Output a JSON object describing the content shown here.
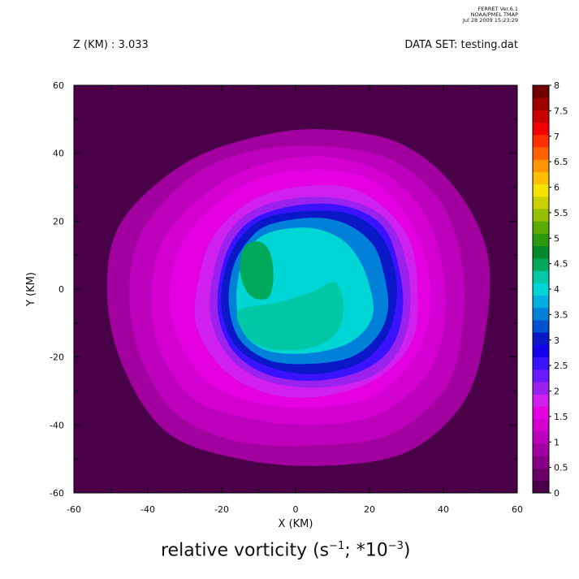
{
  "header": {
    "program": "FERRET  Ver.6.1",
    "org": "NOAA/PMEL TMAP",
    "timestamp": "Jul 28 2009 15:23:29",
    "z_level": "Z (KM) : 3.033",
    "dataset": "DATA SET: testing.dat"
  },
  "bottom_label": {
    "prefix": "relative vorticity (s",
    "exp1": "−1",
    "middle": "; *10",
    "exp2": "−3",
    "suffix": ")"
  },
  "chart_data": {
    "type": "heatmap",
    "title": "",
    "xlabel": "X (KM)",
    "ylabel": "Y (KM)",
    "xlim": [
      -60,
      60
    ],
    "ylim": [
      -60,
      60
    ],
    "x_ticks": [
      -60,
      -40,
      -20,
      0,
      20,
      40,
      60
    ],
    "y_ticks": [
      -60,
      -40,
      -20,
      0,
      20,
      40,
      60
    ],
    "colorbar": {
      "levels": [
        0,
        0.25,
        0.5,
        0.75,
        1,
        1.25,
        1.5,
        1.75,
        2,
        2.25,
        2.5,
        2.75,
        3,
        3.25,
        3.5,
        3.75,
        4,
        4.25,
        4.5,
        4.75,
        5,
        5.25,
        5.5,
        5.75,
        6,
        6.25,
        6.5,
        6.75,
        7,
        7.25,
        7.5,
        7.75,
        8
      ],
      "labels": [
        "0",
        "0.5",
        "1",
        "1.5",
        "2",
        "2.5",
        "3",
        "3.5",
        "4",
        "4.5",
        "5",
        "5.5",
        "6",
        "6.5",
        "7",
        "7.5",
        "8"
      ],
      "colors": [
        "#4a0048",
        "#6a0066",
        "#870084",
        "#a300a0",
        "#bd00bb",
        "#d400d2",
        "#e400e0",
        "#cf20f0",
        "#9a22ee",
        "#6a18ff",
        "#3a12ff",
        "#1400ee",
        "#0a18c8",
        "#0050d0",
        "#0080d8",
        "#00aee0",
        "#00d6d6",
        "#00c8a6",
        "#00a85a",
        "#008a2a",
        "#2c9a10",
        "#5aaa00",
        "#96be00",
        "#cad000",
        "#f4e400",
        "#ffbf00",
        "#ff9400",
        "#ff6000",
        "#ff3000",
        "#f20000",
        "#c80000",
        "#9e0000",
        "#700000"
      ]
    },
    "contours": [
      {
        "level": 0.75,
        "pts": [
          [
            -30,
            37
          ],
          [
            -10,
            45
          ],
          [
            8,
            47
          ],
          [
            28,
            43
          ],
          [
            43,
            30
          ],
          [
            52,
            10
          ],
          [
            51,
            -15
          ],
          [
            45,
            -34
          ],
          [
            30,
            -48
          ],
          [
            8,
            -52
          ],
          [
            -15,
            -50
          ],
          [
            -35,
            -42
          ],
          [
            -47,
            -22
          ],
          [
            -51,
            0
          ],
          [
            -47,
            20
          ]
        ]
      },
      {
        "level": 1.0,
        "pts": [
          [
            -27,
            34
          ],
          [
            -10,
            41
          ],
          [
            8,
            42
          ],
          [
            26,
            38
          ],
          [
            39,
            26
          ],
          [
            45,
            8
          ],
          [
            45,
            -13
          ],
          [
            40,
            -30
          ],
          [
            25,
            -43
          ],
          [
            5,
            -46
          ],
          [
            -15,
            -45
          ],
          [
            -32,
            -37
          ],
          [
            -42,
            -20
          ],
          [
            -45,
            0
          ],
          [
            -41,
            18
          ]
        ]
      },
      {
        "level": 1.25,
        "pts": [
          [
            -22,
            30
          ],
          [
            -8,
            37
          ],
          [
            8,
            39
          ],
          [
            24,
            34
          ],
          [
            35,
            22
          ],
          [
            40,
            5
          ],
          [
            40,
            -12
          ],
          [
            35,
            -26
          ],
          [
            22,
            -37
          ],
          [
            5,
            -40
          ],
          [
            -13,
            -38
          ],
          [
            -28,
            -32
          ],
          [
            -37,
            -17
          ],
          [
            -39,
            0
          ],
          [
            -35,
            16
          ]
        ]
      },
      {
        "level": 1.5,
        "pts": [
          [
            -18,
            28
          ],
          [
            -5,
            34
          ],
          [
            10,
            35
          ],
          [
            22,
            31
          ],
          [
            31,
            20
          ],
          [
            36,
            5
          ],
          [
            36,
            -10
          ],
          [
            31,
            -22
          ],
          [
            20,
            -32
          ],
          [
            3,
            -35
          ],
          [
            -12,
            -33
          ],
          [
            -24,
            -27
          ],
          [
            -32,
            -14
          ],
          [
            -34,
            0
          ],
          [
            -30,
            15
          ]
        ]
      },
      {
        "level": 1.75,
        "pts": [
          [
            -12,
            26
          ],
          [
            0,
            30
          ],
          [
            14,
            30
          ],
          [
            24,
            24
          ],
          [
            31,
            14
          ],
          [
            33,
            0
          ],
          [
            32,
            -14
          ],
          [
            25,
            -24
          ],
          [
            14,
            -30
          ],
          [
            0,
            -32
          ],
          [
            -12,
            -29
          ],
          [
            -21,
            -22
          ],
          [
            -27,
            -10
          ],
          [
            -26,
            4
          ],
          [
            -22,
            16
          ]
        ]
      },
      {
        "level": 2.0,
        "pts": [
          [
            -10,
            24
          ],
          [
            2,
            27
          ],
          [
            15,
            26
          ],
          [
            25,
            20
          ],
          [
            30,
            8
          ],
          [
            31,
            -6
          ],
          [
            28,
            -18
          ],
          [
            20,
            -26
          ],
          [
            6,
            -29
          ],
          [
            -8,
            -27
          ],
          [
            -18,
            -20
          ],
          [
            -23,
            -8
          ],
          [
            -22,
            6
          ],
          [
            -18,
            17
          ]
        ]
      },
      {
        "level": 2.5,
        "pts": [
          [
            -9,
            22
          ],
          [
            3,
            25
          ],
          [
            15,
            24
          ],
          [
            24,
            18
          ],
          [
            28,
            6
          ],
          [
            29,
            -6
          ],
          [
            26,
            -17
          ],
          [
            18,
            -24
          ],
          [
            5,
            -27
          ],
          [
            -8,
            -25
          ],
          [
            -17,
            -18
          ],
          [
            -21,
            -7
          ],
          [
            -20,
            6
          ],
          [
            -16,
            16
          ]
        ]
      },
      {
        "level": 3.0,
        "pts": [
          [
            -8,
            21
          ],
          [
            4,
            23
          ],
          [
            15,
            22
          ],
          [
            23,
            16
          ],
          [
            27,
            5
          ],
          [
            27,
            -6
          ],
          [
            24,
            -15
          ],
          [
            17,
            -22
          ],
          [
            5,
            -25
          ],
          [
            -7,
            -23
          ],
          [
            -16,
            -17
          ],
          [
            -20,
            -6
          ],
          [
            -19,
            6
          ],
          [
            -15,
            15
          ]
        ]
      },
      {
        "level": 3.5,
        "pts": [
          [
            -7,
            19
          ],
          [
            5,
            21
          ],
          [
            14,
            19
          ],
          [
            21,
            13
          ],
          [
            24,
            4
          ],
          [
            25,
            -6
          ],
          [
            22,
            -14
          ],
          [
            15,
            -20
          ],
          [
            4,
            -22
          ],
          [
            -7,
            -21
          ],
          [
            -15,
            -15
          ],
          [
            -18,
            -5
          ],
          [
            -17,
            6
          ],
          [
            -13,
            14
          ]
        ]
      },
      {
        "level": 4.0,
        "pts": [
          [
            -6,
            17
          ],
          [
            4,
            18
          ],
          [
            12,
            15
          ],
          [
            17,
            9
          ],
          [
            20,
            1
          ],
          [
            21,
            -7
          ],
          [
            18,
            -13
          ],
          [
            12,
            -17
          ],
          [
            2,
            -19
          ],
          [
            -8,
            -18
          ],
          [
            -14,
            -13
          ],
          [
            -16,
            -4
          ],
          [
            -15,
            6
          ],
          [
            -12,
            13
          ]
        ]
      },
      {
        "level": 4.25,
        "pts": [
          [
            -15,
            -6
          ],
          [
            -5,
            -4
          ],
          [
            4,
            -1
          ],
          [
            10,
            2
          ],
          [
            12,
            0
          ],
          [
            13,
            -6
          ],
          [
            11,
            -13
          ],
          [
            5,
            -17
          ],
          [
            -4,
            -18
          ],
          [
            -11,
            -16
          ],
          [
            -15,
            -11
          ]
        ]
      },
      {
        "level": 4.5,
        "pts": [
          [
            -14,
            12
          ],
          [
            -10,
            14
          ],
          [
            -7,
            11
          ],
          [
            -6,
            4
          ],
          [
            -7,
            -2
          ],
          [
            -10,
            -3
          ],
          [
            -13,
            -1
          ],
          [
            -15,
            5
          ]
        ]
      }
    ]
  }
}
